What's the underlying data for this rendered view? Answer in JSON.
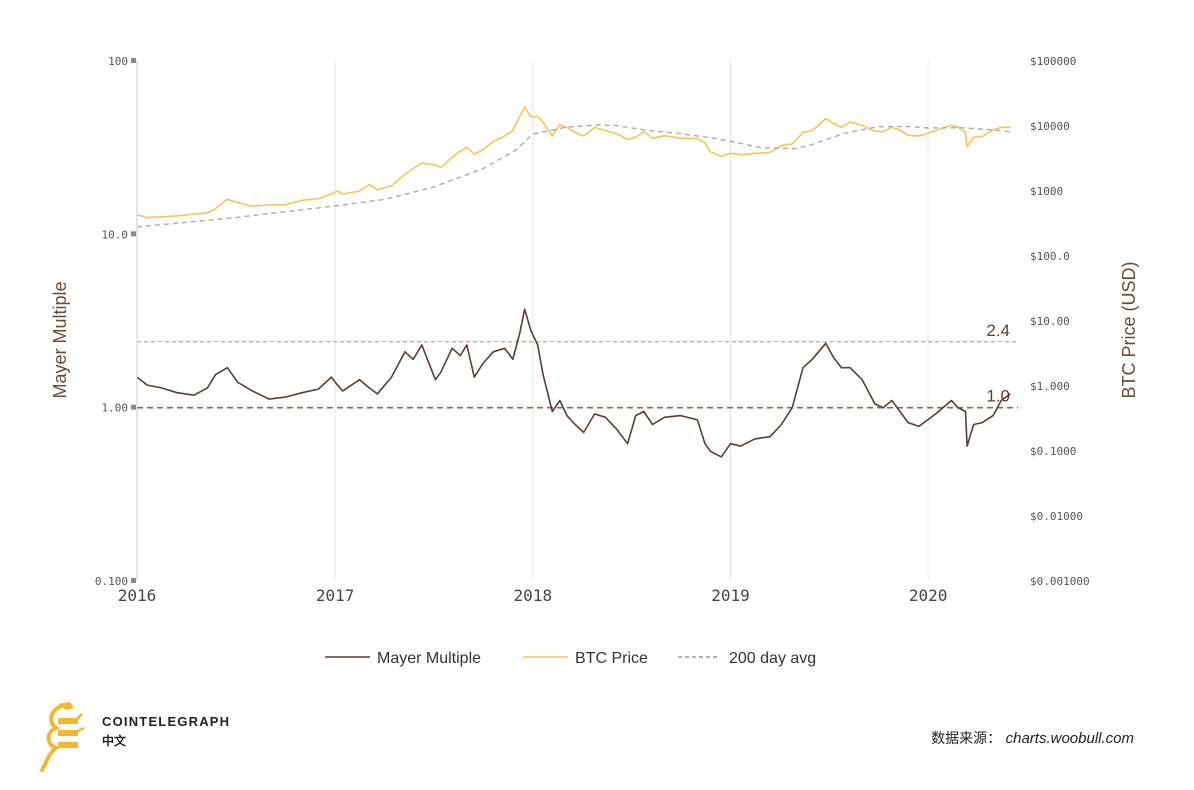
{
  "chart_data": {
    "type": "line",
    "left_axis": {
      "title": "Mayer Multiple",
      "scale": "log",
      "range": [
        0.1,
        100
      ],
      "ticks": [
        {
          "value": 100,
          "label": "100"
        },
        {
          "value": 10,
          "label": "10.0"
        },
        {
          "value": 1,
          "label": "1.00"
        },
        {
          "value": 0.1,
          "label": "0.100"
        }
      ]
    },
    "right_axis": {
      "title": "BTC Price (USD)",
      "scale": "log",
      "range": [
        0.001,
        100000
      ],
      "ticks": [
        {
          "value": 100000,
          "label": "$100000"
        },
        {
          "value": 10000,
          "label": "$10000"
        },
        {
          "value": 1000,
          "label": "$1000"
        },
        {
          "value": 100,
          "label": "$100.0"
        },
        {
          "value": 10,
          "label": "$10.00"
        },
        {
          "value": 1,
          "label": "$1.000"
        },
        {
          "value": 0.1,
          "label": "$0.1000"
        },
        {
          "value": 0.01,
          "label": "$0.01000"
        },
        {
          "value": 0.001,
          "label": "$0.001000"
        }
      ]
    },
    "x_axis": {
      "range": [
        "2016-01-01",
        "2020-06-15"
      ],
      "ticks": [
        {
          "value": "2016-01-01",
          "label": "2016"
        },
        {
          "value": "2017-01-01",
          "label": "2017"
        },
        {
          "value": "2018-01-01",
          "label": "2018"
        },
        {
          "value": "2019-01-01",
          "label": "2019"
        },
        {
          "value": "2020-01-01",
          "label": "2020"
        }
      ]
    },
    "grid": true,
    "reference_lines": [
      {
        "value": 2.4,
        "label": "2.4"
      },
      {
        "value": 1.0,
        "label": "1.0"
      }
    ],
    "series": [
      {
        "name": "Mayer Multiple",
        "axis": "left",
        "color": "#5b3d33",
        "x": [
          "2016-01-01",
          "2016-01-20",
          "2016-02-15",
          "2016-03-15",
          "2016-04-15",
          "2016-05-10",
          "2016-05-25",
          "2016-06-16",
          "2016-07-05",
          "2016-08-01",
          "2016-09-01",
          "2016-10-01",
          "2016-11-01",
          "2016-12-01",
          "2016-12-25",
          "2017-01-05",
          "2017-01-15",
          "2017-02-15",
          "2017-03-05",
          "2017-03-20",
          "2017-04-15",
          "2017-05-10",
          "2017-05-25",
          "2017-06-10",
          "2017-07-05",
          "2017-07-15",
          "2017-08-05",
          "2017-08-20",
          "2017-09-01",
          "2017-09-15",
          "2017-10-01",
          "2017-10-20",
          "2017-11-10",
          "2017-11-25",
          "2017-12-08",
          "2017-12-17",
          "2017-12-28",
          "2018-01-10",
          "2018-01-20",
          "2018-02-06",
          "2018-02-20",
          "2018-03-05",
          "2018-03-20",
          "2018-04-05",
          "2018-04-25",
          "2018-05-15",
          "2018-06-05",
          "2018-06-25",
          "2018-07-10",
          "2018-07-25",
          "2018-08-10",
          "2018-09-01",
          "2018-10-01",
          "2018-11-01",
          "2018-11-15",
          "2018-11-25",
          "2018-12-15",
          "2019-01-01",
          "2019-01-20",
          "2019-02-15",
          "2019-03-15",
          "2019-04-05",
          "2019-04-25",
          "2019-05-15",
          "2019-06-01",
          "2019-06-26",
          "2019-07-10",
          "2019-07-25",
          "2019-08-10",
          "2019-09-01",
          "2019-09-25",
          "2019-10-10",
          "2019-10-26",
          "2019-11-10",
          "2019-11-25",
          "2019-12-15",
          "2020-01-15",
          "2020-02-13",
          "2020-02-25",
          "2020-03-10",
          "2020-03-13",
          "2020-03-25",
          "2020-04-10",
          "2020-04-30",
          "2020-05-15",
          "2020-06-01"
        ],
        "values": [
          1.5,
          1.35,
          1.3,
          1.22,
          1.18,
          1.3,
          1.55,
          1.7,
          1.4,
          1.25,
          1.12,
          1.15,
          1.22,
          1.28,
          1.5,
          1.35,
          1.25,
          1.45,
          1.3,
          1.2,
          1.5,
          2.1,
          1.9,
          2.3,
          1.45,
          1.6,
          2.2,
          2.0,
          2.3,
          1.5,
          1.8,
          2.1,
          2.2,
          1.9,
          2.7,
          3.7,
          2.8,
          2.3,
          1.55,
          0.95,
          1.1,
          0.9,
          0.8,
          0.72,
          0.92,
          0.88,
          0.75,
          0.62,
          0.9,
          0.95,
          0.8,
          0.88,
          0.9,
          0.85,
          0.62,
          0.56,
          0.52,
          0.62,
          0.6,
          0.66,
          0.68,
          0.8,
          1.0,
          1.7,
          1.9,
          2.35,
          1.95,
          1.7,
          1.7,
          1.45,
          1.05,
          1.0,
          1.1,
          0.95,
          0.82,
          0.78,
          0.92,
          1.1,
          1.0,
          0.95,
          0.6,
          0.8,
          0.82,
          0.9,
          1.1,
          1.2
        ]
      },
      {
        "name": "BTC Price",
        "axis": "right",
        "color": "#f7c456",
        "x": [
          "2016-01-01",
          "2016-01-20",
          "2016-02-15",
          "2016-03-15",
          "2016-04-15",
          "2016-05-10",
          "2016-05-25",
          "2016-06-16",
          "2016-07-05",
          "2016-08-01",
          "2016-09-01",
          "2016-10-01",
          "2016-11-01",
          "2016-12-01",
          "2016-12-25",
          "2017-01-05",
          "2017-01-15",
          "2017-02-15",
          "2017-03-05",
          "2017-03-20",
          "2017-04-15",
          "2017-05-10",
          "2017-05-25",
          "2017-06-10",
          "2017-07-05",
          "2017-07-15",
          "2017-08-05",
          "2017-08-20",
          "2017-09-01",
          "2017-09-15",
          "2017-10-01",
          "2017-10-20",
          "2017-11-10",
          "2017-11-25",
          "2017-12-08",
          "2017-12-17",
          "2017-12-28",
          "2018-01-10",
          "2018-01-20",
          "2018-02-06",
          "2018-02-20",
          "2018-03-05",
          "2018-03-20",
          "2018-04-05",
          "2018-04-25",
          "2018-05-15",
          "2018-06-05",
          "2018-06-25",
          "2018-07-10",
          "2018-07-25",
          "2018-08-10",
          "2018-09-01",
          "2018-10-01",
          "2018-11-01",
          "2018-11-15",
          "2018-11-25",
          "2018-12-15",
          "2019-01-01",
          "2019-01-20",
          "2019-02-15",
          "2019-03-15",
          "2019-04-05",
          "2019-04-25",
          "2019-05-15",
          "2019-06-01",
          "2019-06-26",
          "2019-07-10",
          "2019-07-25",
          "2019-08-10",
          "2019-09-01",
          "2019-09-25",
          "2019-10-10",
          "2019-10-26",
          "2019-11-10",
          "2019-11-25",
          "2019-12-15",
          "2020-01-15",
          "2020-02-13",
          "2020-02-25",
          "2020-03-10",
          "2020-03-13",
          "2020-03-25",
          "2020-04-10",
          "2020-04-30",
          "2020-05-15",
          "2020-06-01"
        ],
        "values": [
          430,
          390,
          400,
          415,
          440,
          460,
          530,
          750,
          660,
          580,
          610,
          620,
          720,
          760,
          900,
          1000,
          900,
          1000,
          1250,
          1050,
          1200,
          1800,
          2200,
          2700,
          2500,
          2300,
          3300,
          4100,
          4700,
          3700,
          4300,
          5800,
          7000,
          8500,
          14000,
          19500,
          14000,
          14000,
          11500,
          7000,
          10500,
          9500,
          8000,
          7000,
          9500,
          8500,
          7600,
          6200,
          6700,
          8200,
          6500,
          7100,
          6500,
          6400,
          5500,
          4000,
          3400,
          3800,
          3600,
          3800,
          3900,
          5000,
          5300,
          8000,
          8500,
          13000,
          11000,
          9500,
          11500,
          10200,
          8300,
          8200,
          9500,
          8700,
          7200,
          7000,
          8500,
          10300,
          9600,
          8000,
          4800,
          6700,
          6900,
          8700,
          9500,
          9600
        ]
      },
      {
        "name": "200 day avg",
        "axis": "right",
        "color": "#aaaaaa",
        "dashed": true,
        "x": [
          "2016-01-01",
          "2016-04-01",
          "2016-07-01",
          "2016-10-01",
          "2017-01-01",
          "2017-04-01",
          "2017-07-01",
          "2017-10-01",
          "2017-12-01",
          "2018-01-01",
          "2018-03-01",
          "2018-05-01",
          "2018-06-01",
          "2018-08-01",
          "2018-10-01",
          "2018-12-01",
          "2019-01-01",
          "2019-03-01",
          "2019-05-01",
          "2019-06-01",
          "2019-08-01",
          "2019-10-01",
          "2019-12-01",
          "2020-01-01",
          "2020-03-01",
          "2020-05-01",
          "2020-06-01"
        ],
        "values": [
          280,
          330,
          390,
          480,
          590,
          740,
          1150,
          2200,
          4300,
          7500,
          9500,
          10400,
          10200,
          8600,
          7600,
          6500,
          5800,
          4600,
          4500,
          5200,
          7800,
          9800,
          9800,
          9300,
          9400,
          8700,
          8100
        ]
      }
    ]
  },
  "brand": {
    "name": "COINTELEGRAPH",
    "sub": "中文"
  },
  "source": {
    "label": "数据来源：",
    "url": "charts.woobull.com"
  }
}
